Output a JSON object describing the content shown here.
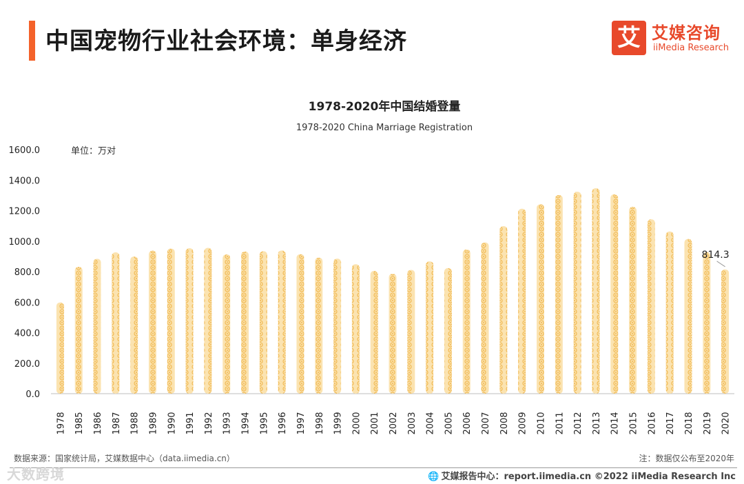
{
  "header": {
    "title": "中国宠物行业社会环境：单身经济",
    "logo_mark": "艾",
    "logo_cn": "艾媒咨询",
    "logo_en": "iiMedia Research"
  },
  "colors": {
    "accent": "#f4622a",
    "brand": "#e8492b",
    "bar_fill": "#fbe3b0",
    "bar_dot": "#f0b54a"
  },
  "chart_data": {
    "type": "bar",
    "title": "1978-2020年中国结婚登量",
    "subtitle": "1978-2020 China Marriage Registration",
    "unit_label": "单位：万对",
    "xlabel": "",
    "ylabel": "",
    "ylim": [
      0,
      1600
    ],
    "yticks": [
      "0.0",
      "200.0",
      "400.0",
      "600.0",
      "800.0",
      "1000.0",
      "1200.0",
      "1400.0",
      "1600.0"
    ],
    "categories": [
      "1978",
      "1985",
      "1986",
      "1987",
      "1988",
      "1989",
      "1990",
      "1991",
      "1992",
      "1993",
      "1994",
      "1995",
      "1996",
      "1997",
      "1998",
      "1999",
      "2000",
      "2001",
      "2002",
      "2003",
      "2004",
      "2005",
      "2006",
      "2007",
      "2008",
      "2009",
      "2010",
      "2011",
      "2012",
      "2013",
      "2014",
      "2015",
      "2016",
      "2017",
      "2018",
      "2019",
      "2020"
    ],
    "values": [
      597.8,
      831.3,
      884.0,
      926.7,
      899.0,
      937.2,
      951.1,
      953.7,
      956.0,
      912.4,
      932.0,
      934.1,
      938.7,
      914.1,
      891.7,
      885.3,
      848.5,
      805.0,
      786.0,
      811.4,
      867.2,
      823.1,
      945.0,
      991.4,
      1098.3,
      1212.4,
      1241.0,
      1302.4,
      1323.6,
      1346.9,
      1306.7,
      1224.7,
      1142.8,
      1063.1,
      1013.9,
      927.3,
      814.3
    ],
    "annotation": {
      "category": "2020",
      "text": "814.3"
    }
  },
  "footer": {
    "source": "数据来源：国家统计局，艾媒数据中心（data.iimedia.cn）",
    "note": "注：数据仅公布至2020年",
    "report": "艾媒报告中心：report.iimedia.cn  ©2022  iiMedia Research  Inc",
    "globe_icon": "🌐",
    "watermark": "大数跨境"
  }
}
